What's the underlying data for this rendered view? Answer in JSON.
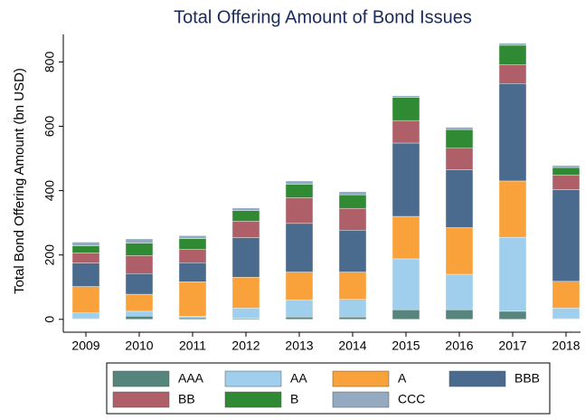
{
  "chart_data": {
    "type": "stacked-bar",
    "title": "Total Offering Amount of Bond Issues",
    "y_label": "Total Bond Offering Amount (bn USD)",
    "categories": [
      "2009",
      "2010",
      "2011",
      "2012",
      "2013",
      "2014",
      "2015",
      "2016",
      "2017",
      "2018"
    ],
    "series": [
      {
        "name": "AAA",
        "color": "#56857d",
        "values": [
          2,
          10,
          5,
          3,
          7,
          7,
          30,
          30,
          25,
          2
        ]
      },
      {
        "name": "AA",
        "color": "#9fcfec",
        "values": [
          18,
          15,
          5,
          32,
          53,
          55,
          158,
          110,
          230,
          33
        ]
      },
      {
        "name": "A",
        "color": "#f9a23b",
        "values": [
          82,
          53,
          107,
          96,
          87,
          85,
          132,
          145,
          175,
          83
        ]
      },
      {
        "name": "BBB",
        "color": "#4a6b8e",
        "values": [
          73,
          64,
          59,
          123,
          151,
          130,
          228,
          180,
          303,
          285
        ]
      },
      {
        "name": "BB",
        "color": "#ae5f68",
        "values": [
          31,
          56,
          42,
          51,
          80,
          68,
          70,
          67,
          59,
          45
        ]
      },
      {
        "name": "B",
        "color": "#2f8a33",
        "values": [
          22,
          39,
          33,
          33,
          42,
          42,
          72,
          58,
          60,
          24
        ]
      },
      {
        "name": "CCC",
        "color": "#93aac0",
        "values": [
          12,
          13,
          9,
          8,
          10,
          10,
          5,
          7,
          6,
          6
        ]
      }
    ],
    "ylim": [
      -40,
      880
    ],
    "yticks": [
      0,
      200,
      400,
      600,
      800
    ],
    "grid": false,
    "legend": "bottom"
  }
}
